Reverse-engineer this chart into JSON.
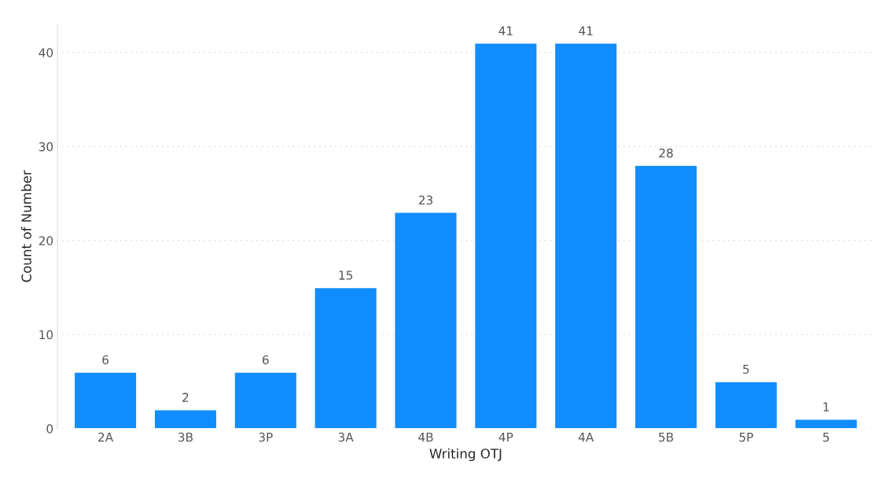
{
  "chart_data": {
    "type": "bar",
    "xlabel": "Writing OTJ",
    "ylabel": "Count of Number",
    "categories": [
      "2A",
      "3B",
      "3P",
      "3A",
      "4B",
      "4P",
      "4A",
      "5B",
      "5P",
      "5"
    ],
    "values": [
      6,
      2,
      6,
      15,
      23,
      41,
      41,
      28,
      5,
      1
    ],
    "color": "#118dff",
    "ylim": [
      0,
      43
    ],
    "yticks": [
      0,
      10,
      20,
      30,
      40
    ],
    "grid": "y",
    "data_labels": true
  }
}
